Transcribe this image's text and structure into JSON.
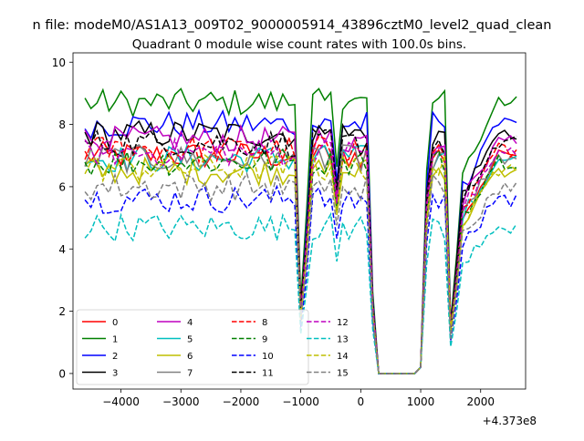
{
  "figure_title": "n file: modeM0/AS1A13_009T02_9000005914_43896cztM0_level2_quad_clean",
  "chart_data": {
    "type": "line",
    "title": "Quadrant 0 module wise count rates with 100.0s bins.",
    "xlabel": "",
    "ylabel": "",
    "x_offset_label": "+4.373e8",
    "xlim": [
      -4800,
      2750
    ],
    "ylim": [
      -0.5,
      10.3
    ],
    "x_ticks": [
      -4000,
      -3000,
      -2000,
      -1000,
      0,
      1000,
      2000
    ],
    "x_tick_labels": [
      "−4000",
      "−3000",
      "−2000",
      "−1000",
      "0",
      "1000",
      "2000"
    ],
    "y_ticks": [
      0,
      2,
      4,
      6,
      8,
      10
    ],
    "y_tick_labels": [
      "0",
      "2",
      "4",
      "6",
      "8",
      "10"
    ],
    "grid": false,
    "legend_position": "lower-left",
    "legend_columns": 4,
    "x_range": [
      -4600,
      2600
    ],
    "x_step": 100,
    "gap": {
      "drop_start": 200,
      "zero_start": 300,
      "zero_end": 1000,
      "rise_end": 1200
    },
    "dips": [
      {
        "x": -1000,
        "factor": 0.27
      },
      {
        "x": -900,
        "factor": 0.6
      },
      {
        "x": -400,
        "factor": 0.78
      },
      {
        "x": 1500,
        "factor": 0.2
      },
      {
        "x": 1600,
        "factor": 0.45
      }
    ],
    "series": [
      {
        "name": "0",
        "color": "#ff0000",
        "style": "solid",
        "base": 7.0
      },
      {
        "name": "1",
        "color": "#008000",
        "style": "solid",
        "base": 8.7
      },
      {
        "name": "2",
        "color": "#0000ff",
        "style": "solid",
        "base": 8.0
      },
      {
        "name": "3",
        "color": "#000000",
        "style": "solid",
        "base": 7.7
      },
      {
        "name": "4",
        "color": "#bf00bf",
        "style": "solid",
        "base": 7.5
      },
      {
        "name": "5",
        "color": "#00bfbf",
        "style": "solid",
        "base": 6.9
      },
      {
        "name": "6",
        "color": "#bfbf00",
        "style": "solid",
        "base": 6.5
      },
      {
        "name": "7",
        "color": "#808080",
        "style": "solid",
        "base": 6.9
      },
      {
        "name": "8",
        "color": "#ff0000",
        "style": "dashed",
        "base": 7.2
      },
      {
        "name": "9",
        "color": "#008000",
        "style": "dashed",
        "base": 6.8
      },
      {
        "name": "10",
        "color": "#0000ff",
        "style": "dashed",
        "base": 5.6
      },
      {
        "name": "11",
        "color": "#000000",
        "style": "dashed",
        "base": 7.4
      },
      {
        "name": "12",
        "color": "#bf00bf",
        "style": "dashed",
        "base": 7.1
      },
      {
        "name": "13",
        "color": "#00bfbf",
        "style": "dashed",
        "base": 4.7
      },
      {
        "name": "14",
        "color": "#bfbf00",
        "style": "dashed",
        "base": 6.6
      },
      {
        "name": "15",
        "color": "#808080",
        "style": "dashed",
        "base": 6.0
      }
    ]
  }
}
